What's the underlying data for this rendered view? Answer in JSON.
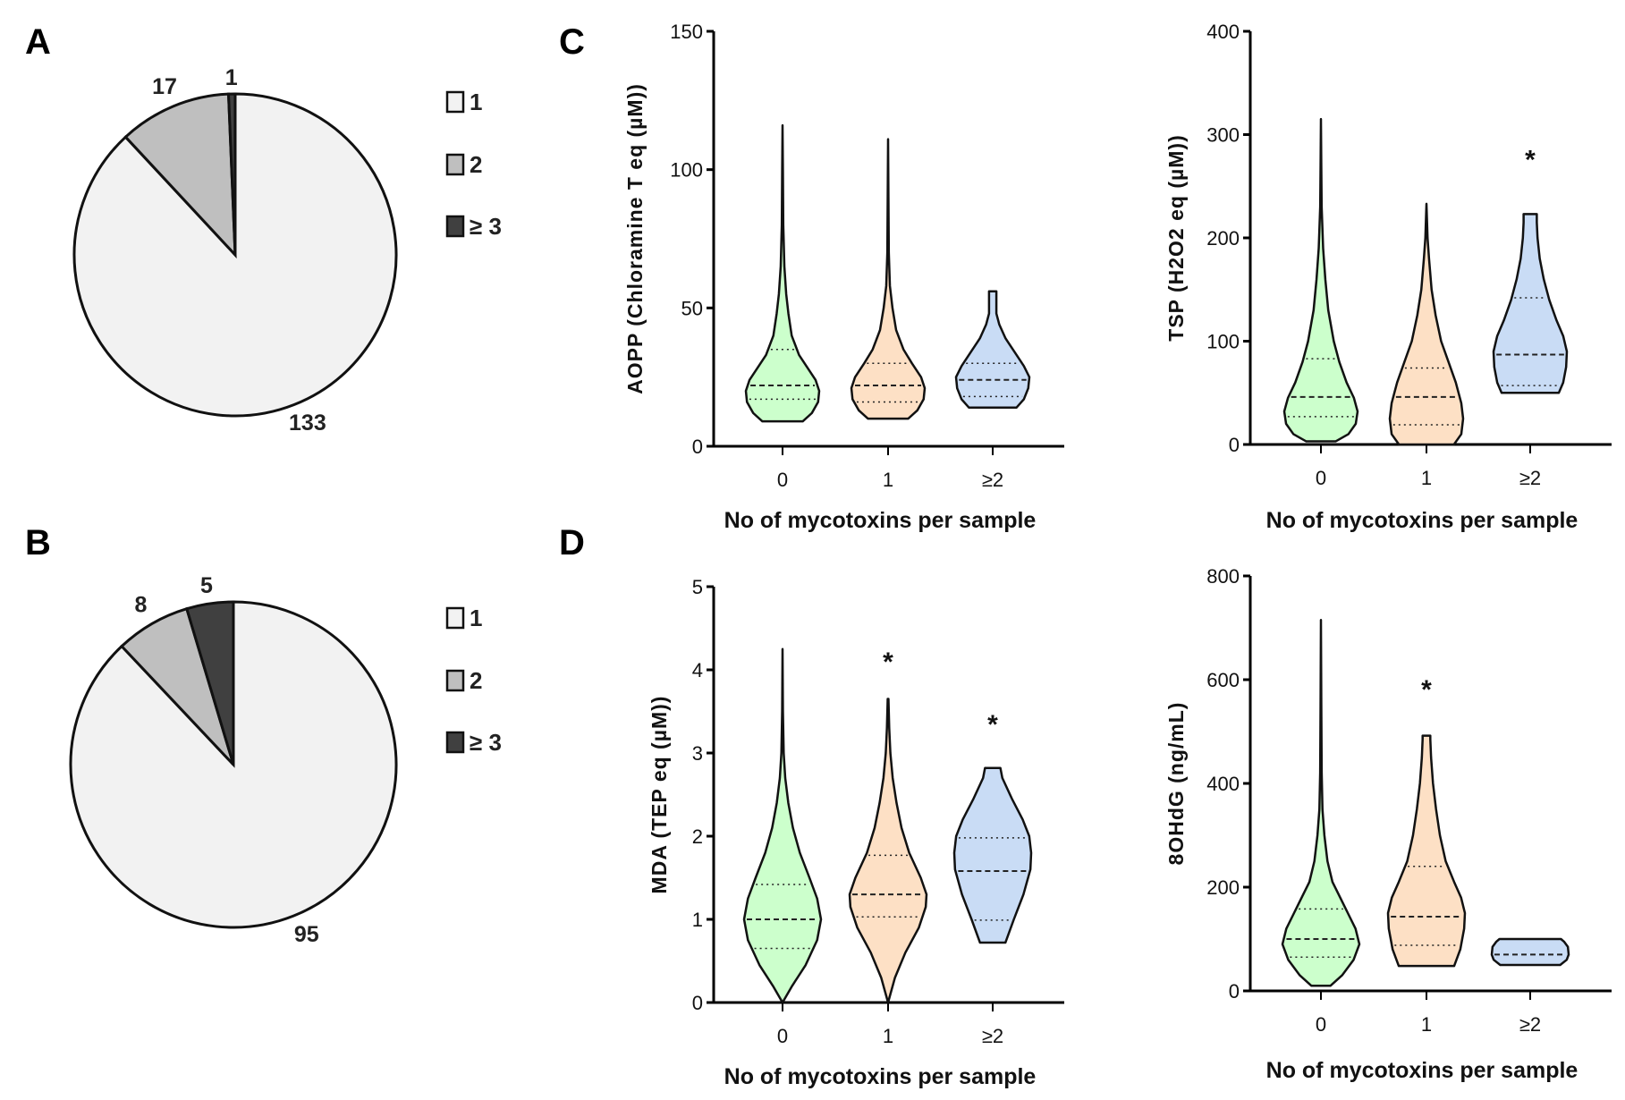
{
  "panels": {
    "a": "A",
    "b": "B",
    "c": "C",
    "d": "D"
  },
  "chart_data": [
    {
      "id": "pieA",
      "type": "pie",
      "panel": "A",
      "slices": [
        {
          "label": "1",
          "value": 133,
          "color": "#f2f2f2"
        },
        {
          "label": "2",
          "value": 17,
          "color": "#bfbfbf"
        },
        {
          "label": "≥ 3",
          "value": 1,
          "color": "#404040"
        }
      ],
      "legend_position": "right"
    },
    {
      "id": "pieB",
      "type": "pie",
      "panel": "B",
      "slices": [
        {
          "label": "1",
          "value": 95,
          "color": "#f2f2f2"
        },
        {
          "label": "2",
          "value": 8,
          "color": "#bfbfbf"
        },
        {
          "label": "≥ 3",
          "value": 5,
          "color": "#404040"
        }
      ],
      "legend_position": "right"
    },
    {
      "id": "aopp",
      "type": "violin",
      "panel": "C",
      "ylabel": "AOPP (Chloramine T eq (µM))",
      "xlabel": "No of mycotoxins per sample",
      "ylim": [
        0,
        150
      ],
      "yticks": [
        "0",
        "50",
        "100",
        "150"
      ],
      "ytick_values": [
        0,
        50,
        100,
        150
      ],
      "categories": [
        "0",
        "1",
        "≥2"
      ],
      "groups": [
        {
          "category": "0",
          "color": "#ccffcc",
          "min": 9,
          "max": 116,
          "median": 22,
          "q1": 17,
          "q3": 35,
          "star": "",
          "density": [
            [
              9,
              0.55
            ],
            [
              12,
              0.8
            ],
            [
              16,
              0.97
            ],
            [
              20,
              1
            ],
            [
              24,
              0.9
            ],
            [
              28,
              0.7
            ],
            [
              33,
              0.45
            ],
            [
              40,
              0.25
            ],
            [
              48,
              0.16
            ],
            [
              55,
              0.1
            ],
            [
              65,
              0.05
            ],
            [
              80,
              0.02
            ],
            [
              100,
              0.01
            ],
            [
              116,
              0
            ]
          ]
        },
        {
          "category": "1",
          "color": "#fde0c5",
          "min": 10,
          "max": 111,
          "median": 22,
          "q1": 16,
          "q3": 30,
          "star": "",
          "density": [
            [
              10,
              0.55
            ],
            [
              13,
              0.8
            ],
            [
              17,
              0.97
            ],
            [
              21,
              1
            ],
            [
              25,
              0.9
            ],
            [
              30,
              0.65
            ],
            [
              35,
              0.42
            ],
            [
              42,
              0.22
            ],
            [
              50,
              0.12
            ],
            [
              58,
              0.05
            ],
            [
              70,
              0.02
            ],
            [
              90,
              0.01
            ],
            [
              111,
              0
            ]
          ]
        },
        {
          "category": "≥2",
          "color": "#c9dcf5",
          "min": 14,
          "max": 56,
          "median": 24,
          "q1": 18,
          "q3": 30,
          "star": "",
          "density": [
            [
              14,
              0.65
            ],
            [
              17,
              0.85
            ],
            [
              21,
              0.97
            ],
            [
              25,
              1
            ],
            [
              29,
              0.85
            ],
            [
              34,
              0.6
            ],
            [
              39,
              0.35
            ],
            [
              44,
              0.18
            ],
            [
              48,
              0.1
            ],
            [
              53,
              0.1
            ],
            [
              56,
              0.1
            ]
          ]
        }
      ]
    },
    {
      "id": "tsp",
      "type": "violin",
      "panel": "C",
      "ylabel": "TSP (H2O2 eq (µM))",
      "xlabel": "No of mycotoxins per sample",
      "ylim": [
        0,
        400
      ],
      "yticks": [
        "0",
        "100",
        "200",
        "300",
        "400"
      ],
      "ytick_values": [
        0,
        100,
        200,
        300,
        400
      ],
      "categories": [
        "0",
        "1",
        "≥2"
      ],
      "groups": [
        {
          "category": "0",
          "color": "#ccffcc",
          "min": 3,
          "max": 315,
          "median": 46,
          "q1": 27,
          "q3": 83,
          "star": "",
          "density": [
            [
              3,
              0.4
            ],
            [
              10,
              0.75
            ],
            [
              20,
              0.95
            ],
            [
              32,
              1
            ],
            [
              45,
              0.9
            ],
            [
              60,
              0.7
            ],
            [
              80,
              0.5
            ],
            [
              100,
              0.35
            ],
            [
              130,
              0.2
            ],
            [
              160,
              0.12
            ],
            [
              190,
              0.06
            ],
            [
              230,
              0.02
            ],
            [
              270,
              0.01
            ],
            [
              315,
              0
            ]
          ]
        },
        {
          "category": "1",
          "color": "#fde0c5",
          "min": 0,
          "max": 233,
          "median": 46,
          "q1": 19,
          "q3": 74,
          "star": "",
          "density": [
            [
              0,
              0.75
            ],
            [
              10,
              0.95
            ],
            [
              25,
              1
            ],
            [
              40,
              0.95
            ],
            [
              60,
              0.8
            ],
            [
              80,
              0.6
            ],
            [
              100,
              0.4
            ],
            [
              125,
              0.25
            ],
            [
              150,
              0.14
            ],
            [
              180,
              0.07
            ],
            [
              200,
              0.03
            ],
            [
              233,
              0
            ]
          ]
        },
        {
          "category": "≥2",
          "color": "#c9dcf5",
          "min": 50,
          "max": 223,
          "median": 87,
          "q1": 57,
          "q3": 142,
          "star": "*",
          "star_value": 280,
          "density": [
            [
              50,
              0.78
            ],
            [
              60,
              0.9
            ],
            [
              75,
              0.98
            ],
            [
              90,
              1
            ],
            [
              105,
              0.9
            ],
            [
              120,
              0.72
            ],
            [
              140,
              0.52
            ],
            [
              160,
              0.37
            ],
            [
              180,
              0.26
            ],
            [
              200,
              0.2
            ],
            [
              215,
              0.18
            ],
            [
              223,
              0.18
            ]
          ]
        }
      ]
    },
    {
      "id": "mda",
      "type": "violin",
      "panel": "D",
      "ylabel": "MDA (TEP eq (µM))",
      "xlabel": "No of mycotoxins per sample",
      "ylim": [
        0,
        5
      ],
      "yticks": [
        "0",
        "1",
        "2",
        "3",
        "4",
        "5"
      ],
      "ytick_values": [
        0,
        1,
        2,
        3,
        4,
        5
      ],
      "categories": [
        "0",
        "1",
        "≥2"
      ],
      "groups": [
        {
          "category": "0",
          "color": "#ccffcc",
          "min": 0,
          "max": 4.25,
          "median": 1.0,
          "q1": 0.65,
          "q3": 1.42,
          "star": "",
          "density": [
            [
              0,
              0
            ],
            [
              0.2,
              0.25
            ],
            [
              0.45,
              0.6
            ],
            [
              0.75,
              0.9
            ],
            [
              1.0,
              1
            ],
            [
              1.25,
              0.9
            ],
            [
              1.5,
              0.7
            ],
            [
              1.8,
              0.45
            ],
            [
              2.1,
              0.27
            ],
            [
              2.4,
              0.15
            ],
            [
              2.7,
              0.07
            ],
            [
              3.0,
              0.03
            ],
            [
              3.5,
              0.01
            ],
            [
              4.25,
              0
            ]
          ]
        },
        {
          "category": "1",
          "color": "#fde0c5",
          "min": 0,
          "max": 3.65,
          "median": 1.3,
          "q1": 1.03,
          "q3": 1.77,
          "star": "*",
          "star_value": 4.15,
          "density": [
            [
              0,
              0
            ],
            [
              0.3,
              0.18
            ],
            [
              0.6,
              0.45
            ],
            [
              0.9,
              0.8
            ],
            [
              1.15,
              0.98
            ],
            [
              1.3,
              1
            ],
            [
              1.5,
              0.85
            ],
            [
              1.8,
              0.55
            ],
            [
              2.1,
              0.35
            ],
            [
              2.4,
              0.22
            ],
            [
              2.7,
              0.12
            ],
            [
              3.0,
              0.06
            ],
            [
              3.3,
              0.03
            ],
            [
              3.65,
              0.01
            ]
          ]
        },
        {
          "category": "≥2",
          "color": "#c9dcf5",
          "min": 0.72,
          "max": 2.82,
          "median": 1.58,
          "q1": 0.99,
          "q3": 1.98,
          "star": "*",
          "star_value": 3.4,
          "density": [
            [
              0.72,
              0.33
            ],
            [
              1.0,
              0.55
            ],
            [
              1.3,
              0.8
            ],
            [
              1.6,
              0.98
            ],
            [
              1.8,
              1
            ],
            [
              2.0,
              0.95
            ],
            [
              2.2,
              0.78
            ],
            [
              2.45,
              0.5
            ],
            [
              2.7,
              0.25
            ],
            [
              2.82,
              0.2
            ]
          ]
        }
      ]
    },
    {
      "id": "ohdg",
      "type": "violin",
      "panel": "D",
      "ylabel": "8OHdG (ng/mL)",
      "xlabel": "No of mycotoxins per sample",
      "ylim": [
        0,
        800
      ],
      "yticks": [
        "0",
        "200",
        "400",
        "600",
        "800"
      ],
      "ytick_values": [
        0,
        200,
        400,
        600,
        800
      ],
      "categories": [
        "0",
        "1",
        "≥2"
      ],
      "groups": [
        {
          "category": "0",
          "color": "#ccffcc",
          "min": 10,
          "max": 715,
          "median": 100,
          "q1": 65,
          "q3": 158,
          "star": "",
          "density": [
            [
              10,
              0.25
            ],
            [
              30,
              0.55
            ],
            [
              60,
              0.85
            ],
            [
              90,
              1
            ],
            [
              120,
              0.9
            ],
            [
              150,
              0.7
            ],
            [
              180,
              0.5
            ],
            [
              210,
              0.3
            ],
            [
              250,
              0.17
            ],
            [
              300,
              0.09
            ],
            [
              350,
              0.04
            ],
            [
              420,
              0.02
            ],
            [
              550,
              0.01
            ],
            [
              715,
              0
            ]
          ]
        },
        {
          "category": "1",
          "color": "#fde0c5",
          "min": 48,
          "max": 492,
          "median": 143,
          "q1": 88,
          "q3": 240,
          "star": "*",
          "star_value": 590,
          "density": [
            [
              48,
              0.72
            ],
            [
              80,
              0.88
            ],
            [
              120,
              0.98
            ],
            [
              150,
              1
            ],
            [
              180,
              0.9
            ],
            [
              210,
              0.72
            ],
            [
              250,
              0.5
            ],
            [
              300,
              0.35
            ],
            [
              350,
              0.25
            ],
            [
              400,
              0.17
            ],
            [
              450,
              0.12
            ],
            [
              485,
              0.1
            ],
            [
              492,
              0.1
            ]
          ]
        },
        {
          "category": "≥2",
          "color": "#c9dcf5",
          "min": 50,
          "max": 100,
          "median": 70,
          "q1": null,
          "q3": null,
          "star": "",
          "density": [
            [
              50,
              0.78
            ],
            [
              60,
              0.95
            ],
            [
              70,
              1
            ],
            [
              85,
              0.98
            ],
            [
              95,
              0.88
            ],
            [
              100,
              0.8
            ]
          ]
        }
      ]
    }
  ]
}
